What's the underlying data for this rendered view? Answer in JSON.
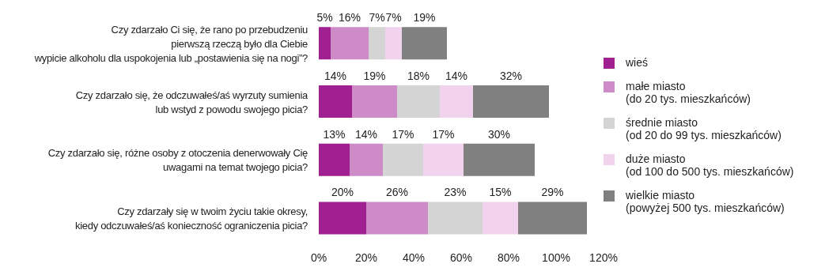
{
  "chart_data": {
    "type": "bar",
    "orientation": "horizontal",
    "stacked": true,
    "categories": [
      "Czy zdarzało Ci się, że rano po przebudzeniu\npierwszą rzeczą było dla Ciebie\nwypicie alkoholu dla uspokojenia lub „postawienia się na nogi”?",
      "Czy zdarzało się, że odczuwałeś/aś wyrzuty sumienia\nlub wstyd z powodu swojego picia?",
      "Czy zdarzało się, różne osoby z otoczenia denerwowały Cię\nuwagami na temat twojego picia?",
      "Czy zdarzały się w twoim życiu takie okresy,\nkiedy odczuwałeś/aś konieczność ograniczenia picia?"
    ],
    "series": [
      {
        "name": "wieś",
        "color": "#a01f91",
        "values": [
          5,
          14,
          13,
          20
        ],
        "value_labels": [
          "5%",
          "14%",
          "13%",
          "20%"
        ]
      },
      {
        "name": "małe miasto\n(do 20 tys. mieszkańców)",
        "color": "#cd8bc8",
        "values": [
          16,
          19,
          14,
          26
        ],
        "value_labels": [
          "16%",
          "19%",
          "14%",
          "26%"
        ]
      },
      {
        "name": "średnie miasto\n(od 20 do 99 tys. mieszkańców)",
        "color": "#d4d4d4",
        "values": [
          7,
          18,
          17,
          23
        ],
        "value_labels": [
          "7%",
          "18%",
          "17%",
          "23%"
        ]
      },
      {
        "name": "duże miasto\n(od 100 do 500 tys. mieszkańców)",
        "color": "#f1d3ee",
        "values": [
          7,
          14,
          17,
          15
        ],
        "value_labels": [
          "7%",
          "14%",
          "17%",
          "15%"
        ]
      },
      {
        "name": "wielkie miasto\n(powyżej 500 tys. mieszkańców)",
        "color": "#808080",
        "values": [
          19,
          32,
          30,
          29
        ],
        "value_labels": [
          "19%",
          "32%",
          "30%",
          "29%"
        ]
      }
    ],
    "xlim": [
      0,
      120
    ],
    "xticks": [
      {
        "value": 0,
        "label": "0%"
      },
      {
        "value": 20,
        "label": "20%"
      },
      {
        "value": 40,
        "label": "40%"
      },
      {
        "value": 60,
        "label": "60%"
      },
      {
        "value": 80,
        "label": "80%"
      },
      {
        "value": 100,
        "label": "100%"
      },
      {
        "value": 120,
        "label": "120%"
      }
    ],
    "grid": false,
    "legend": "right"
  }
}
